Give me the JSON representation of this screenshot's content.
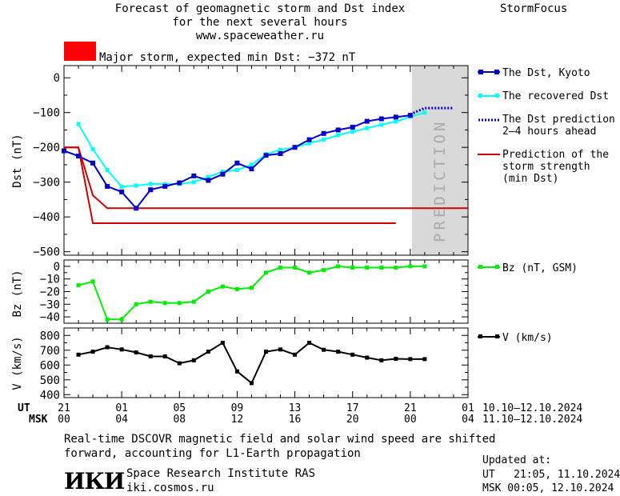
{
  "header": {
    "title_line1": "Forecast of geomagnetic storm and Dst index",
    "title_line2": "for the next several hours",
    "url": "www.spaceweather.ru",
    "brand": "StormFocus",
    "storm_label": "Major storm, expected min Dst: −372 nT",
    "storm_color": "#ff0000"
  },
  "prediction_text": "PREDICTION",
  "legend": {
    "dst_kyoto": "The Dst, Kyoto",
    "recovered": "The recovered Dst",
    "prediction_1": "The Dst prediction",
    "prediction_2": "2–4 hours ahead",
    "strength_1": "Prediction of the",
    "strength_2": "storm strength",
    "strength_3": "(min Dst)",
    "bz": "Bz (nT, GSM)",
    "v": "V (km/s)"
  },
  "time_axis": {
    "ut_label": "UT",
    "msk_label": "MSK",
    "ut_ticks": [
      "21",
      "01",
      "05",
      "09",
      "13",
      "17",
      "21",
      "01"
    ],
    "msk_ticks": [
      "00",
      "04",
      "08",
      "12",
      "16",
      "20",
      "00",
      "04"
    ],
    "ut_range": "10.10–12.10.2024",
    "msk_range": "11.10–12.10.2024"
  },
  "footer": {
    "note_line1": "Real-time DSCOVR magnetic field and solar wind speed are shifted",
    "note_line2": "forward, accounting for L1-Earth propagation",
    "institute": "Space Research Institute RAS",
    "site": "iki.cosmos.ru",
    "logo_text": "ИКИ",
    "updated_label": "Updated at:",
    "updated_ut": "UT   21:05, 11.10.2024",
    "updated_msk": "MSK 00:05, 12.10.2024"
  },
  "colors": {
    "dst": "#0000cc",
    "recovered": "#00ffff",
    "prediction": "#0000cc",
    "strength": "#cc0000",
    "bz": "#00ee00",
    "v": "#000000",
    "prediction_band": "#d9d9d9"
  },
  "chart_data": [
    {
      "type": "line",
      "ylabel": "Dst (nT)",
      "ylim": [
        -510,
        35
      ],
      "yticks": [
        0,
        -100,
        -200,
        -300,
        -400,
        -500
      ],
      "x_unit": "hours since 21 UT 10.10.2024",
      "xlim": [
        0,
        28
      ],
      "prediction_start": 24,
      "series": [
        {
          "name": "The Dst, Kyoto",
          "x": [
            0,
            1,
            2,
            3,
            4,
            5,
            6,
            7,
            8,
            9,
            10,
            11,
            12,
            13,
            14,
            15,
            16,
            17,
            18,
            19,
            20,
            21,
            22,
            23,
            24
          ],
          "y": [
            -210,
            -225,
            -245,
            -312,
            -328,
            -375,
            -322,
            -312,
            -302,
            -282,
            -295,
            -277,
            -245,
            -262,
            -223,
            -218,
            -200,
            -178,
            -160,
            -150,
            -142,
            -125,
            -118,
            -113,
            -108
          ]
        },
        {
          "name": "The recovered Dst",
          "x": [
            1,
            2,
            3,
            4,
            5,
            6,
            7,
            8,
            9,
            10,
            11,
            12,
            13,
            14,
            15,
            16,
            17,
            18,
            19,
            20,
            21,
            22,
            23,
            24,
            25
          ],
          "y": [
            -133,
            -205,
            -265,
            -313,
            -310,
            -305,
            -306,
            -305,
            -300,
            -285,
            -270,
            -265,
            -250,
            -220,
            -207,
            -200,
            -188,
            -178,
            -165,
            -155,
            -145,
            -135,
            -126,
            -112,
            -100
          ]
        },
        {
          "name": "The Dst prediction 2–4 hours ahead",
          "x": [
            24,
            25,
            26,
            27
          ],
          "y": [
            -105,
            -87,
            -87,
            -87
          ]
        },
        {
          "name": "Prediction of the storm strength (min Dst)",
          "x": [
            0,
            1,
            2,
            3,
            28
          ],
          "y": [
            -200,
            -200,
            -338,
            -375,
            -375
          ]
        },
        {
          "name": "",
          "x": [
            0,
            1,
            2,
            23
          ],
          "y": [
            -200,
            -200,
            -418,
            -418
          ]
        }
      ]
    },
    {
      "type": "line",
      "ylabel": "Bz (nT)",
      "ylim": [
        -45,
        5
      ],
      "yticks": [
        0,
        -10,
        -20,
        -30,
        -40
      ],
      "series": [
        {
          "name": "Bz (nT, GSM)",
          "x": [
            1,
            2,
            3,
            4,
            5,
            6,
            7,
            8,
            9,
            10,
            11,
            12,
            13,
            14,
            15,
            16,
            17,
            18,
            19,
            20,
            21,
            22,
            23,
            24,
            25
          ],
          "y": [
            -15,
            -12,
            -42,
            -42,
            -30,
            -28,
            -29,
            -29,
            -28,
            -20,
            -16,
            -18,
            -17,
            -5,
            -1,
            -1,
            -5,
            -3,
            0,
            -1,
            -1,
            -1,
            -1,
            0,
            0
          ]
        }
      ]
    },
    {
      "type": "line",
      "ylabel": "V (km/s)",
      "ylim": [
        380,
        850
      ],
      "yticks": [
        400,
        500,
        600,
        700,
        800
      ],
      "series": [
        {
          "name": "V (km/s)",
          "x": [
            1,
            2,
            3,
            4,
            5,
            6,
            7,
            8,
            9,
            10,
            11,
            12,
            13,
            14,
            15,
            16,
            17,
            18,
            19,
            20,
            21,
            22,
            23,
            24,
            25
          ],
          "y": [
            670,
            690,
            720,
            705,
            685,
            658,
            658,
            612,
            632,
            690,
            750,
            557,
            478,
            690,
            705,
            670,
            750,
            703,
            690,
            670,
            650,
            632,
            642,
            640,
            640
          ]
        }
      ]
    }
  ]
}
